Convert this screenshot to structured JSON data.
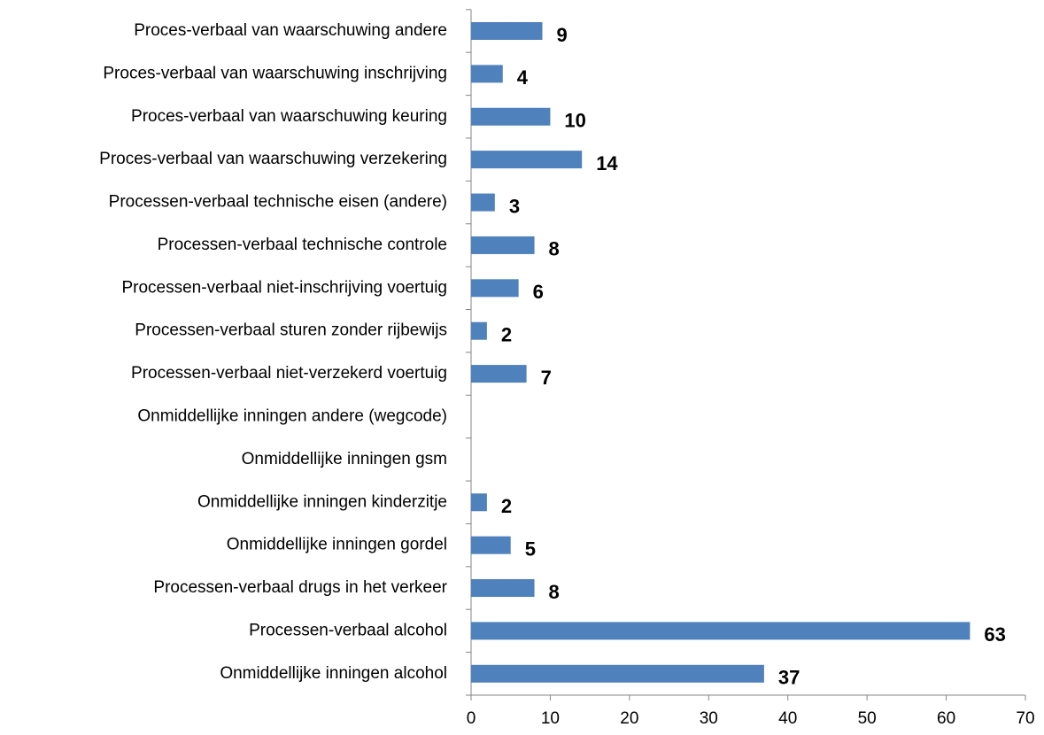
{
  "chart_data": {
    "type": "hbar",
    "categories": [
      "Proces-verbaal van waarschuwing andere",
      "Proces-verbaal van waarschuwing inschrijving",
      "Proces-verbaal van waarschuwing keuring",
      "Proces-verbaal van waarschuwing verzekering",
      "Processen-verbaal technische eisen (andere)",
      "Processen-verbaal technische controle",
      "Processen-verbaal niet-inschrijving voertuig",
      "Processen-verbaal sturen zonder rijbewijs",
      "Processen-verbaal niet-verzekerd voertuig",
      "Onmiddellijke inningen andere (wegcode)",
      "Onmiddellijke inningen gsm",
      "Onmiddellijke inningen kinderzitje",
      "Onmiddellijke inningen gordel",
      "Processen-verbaal drugs in het verkeer",
      "Processen-verbaal alcohol",
      "Onmiddellijke inningen alcohol"
    ],
    "values": [
      9,
      4,
      10,
      14,
      3,
      8,
      6,
      2,
      7,
      null,
      null,
      2,
      5,
      8,
      63,
      37
    ],
    "color": "#4f81bd",
    "xlim": [
      0,
      70
    ],
    "xticks": [
      0,
      10,
      20,
      30,
      40,
      50,
      60,
      70
    ],
    "grid": false
  }
}
